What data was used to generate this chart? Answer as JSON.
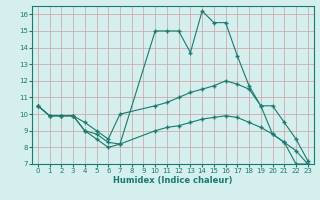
{
  "xlabel": "Humidex (Indice chaleur)",
  "xlim": [
    -0.5,
    23.5
  ],
  "ylim": [
    7,
    16.5
  ],
  "yticks": [
    7,
    8,
    9,
    10,
    11,
    12,
    13,
    14,
    15,
    16
  ],
  "xticks": [
    0,
    1,
    2,
    3,
    4,
    5,
    6,
    7,
    8,
    9,
    10,
    11,
    12,
    13,
    14,
    15,
    16,
    17,
    18,
    19,
    20,
    21,
    22,
    23
  ],
  "bg_color": "#d4efed",
  "line_color": "#1a7a6e",
  "grid_color": "#c0d8d4",
  "curve1_x": [
    0,
    1,
    2,
    3,
    4,
    5,
    6,
    7,
    10,
    11,
    12,
    13,
    14,
    15,
    16,
    17,
    18,
    19,
    20,
    21,
    22,
    23
  ],
  "curve1_y": [
    10.5,
    9.9,
    9.9,
    9.9,
    9.0,
    8.5,
    8.0,
    8.2,
    15.0,
    15.0,
    15.0,
    13.7,
    16.2,
    15.5,
    15.5,
    13.5,
    11.7,
    10.5,
    8.8,
    8.3,
    7.0,
    7.0
  ],
  "curve2_x": [
    0,
    1,
    2,
    3,
    4,
    5,
    6,
    7,
    10,
    11,
    12,
    13,
    14,
    15,
    16,
    17,
    18,
    19,
    20,
    21,
    22,
    23
  ],
  "curve2_y": [
    10.5,
    9.9,
    9.9,
    9.9,
    9.5,
    9.0,
    8.5,
    10.0,
    10.5,
    10.7,
    11.0,
    11.3,
    11.5,
    11.7,
    12.0,
    11.8,
    11.5,
    10.5,
    10.5,
    9.5,
    8.5,
    7.2
  ],
  "curve3_x": [
    0,
    1,
    2,
    3,
    4,
    5,
    6,
    7,
    10,
    11,
    12,
    13,
    14,
    15,
    16,
    17,
    18,
    19,
    20,
    21,
    22,
    23
  ],
  "curve3_y": [
    10.5,
    9.9,
    9.9,
    9.9,
    9.0,
    8.8,
    8.3,
    8.2,
    9.0,
    9.2,
    9.3,
    9.5,
    9.7,
    9.8,
    9.9,
    9.8,
    9.5,
    9.2,
    8.8,
    8.3,
    7.8,
    7.0
  ]
}
